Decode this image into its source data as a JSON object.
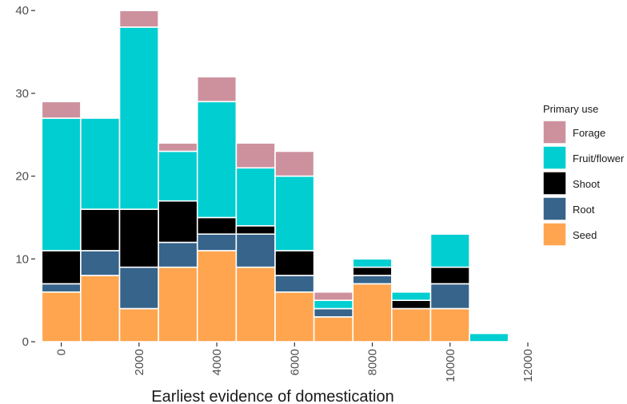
{
  "chart_data": {
    "type": "bar",
    "stacked": true,
    "title": "",
    "xlabel": "Earliest evidence of domestication",
    "ylabel": "",
    "x_ticks": [
      0,
      2000,
      4000,
      6000,
      8000,
      10000,
      12000
    ],
    "y_ticks": [
      0,
      10,
      20,
      30,
      40
    ],
    "xlim": [
      -650,
      12000
    ],
    "ylim": [
      0,
      40.5
    ],
    "bin_width": 1000,
    "grid": false,
    "legend": {
      "title": "Primary use",
      "position": "right"
    },
    "bins": [
      0,
      1000,
      2000,
      3000,
      4000,
      5000,
      6000,
      7000,
      8000,
      9000,
      10000,
      11000
    ],
    "series": [
      {
        "name": "Seed",
        "color": "#FFA54F",
        "values": [
          6,
          8,
          4,
          9,
          11,
          9,
          6,
          3,
          7,
          4,
          4,
          0
        ]
      },
      {
        "name": "Root",
        "color": "#36648B",
        "values": [
          1,
          3,
          5,
          3,
          2,
          4,
          2,
          1,
          1,
          0,
          3,
          0
        ]
      },
      {
        "name": "Shoot",
        "color": "#000000",
        "values": [
          4,
          5,
          7,
          5,
          2,
          1,
          3,
          0,
          1,
          1,
          2,
          0
        ]
      },
      {
        "name": "Fruit/flower",
        "color": "#00CED1",
        "values": [
          16,
          11,
          22,
          6,
          14,
          7,
          9,
          1,
          1,
          1,
          4,
          1
        ]
      },
      {
        "name": "Forage",
        "color": "#CD919E",
        "values": [
          2,
          0,
          2,
          1,
          3,
          3,
          3,
          1,
          0,
          0,
          0,
          0
        ]
      }
    ],
    "legend_order": [
      "Forage",
      "Fruit/flower",
      "Shoot",
      "Root",
      "Seed"
    ]
  }
}
